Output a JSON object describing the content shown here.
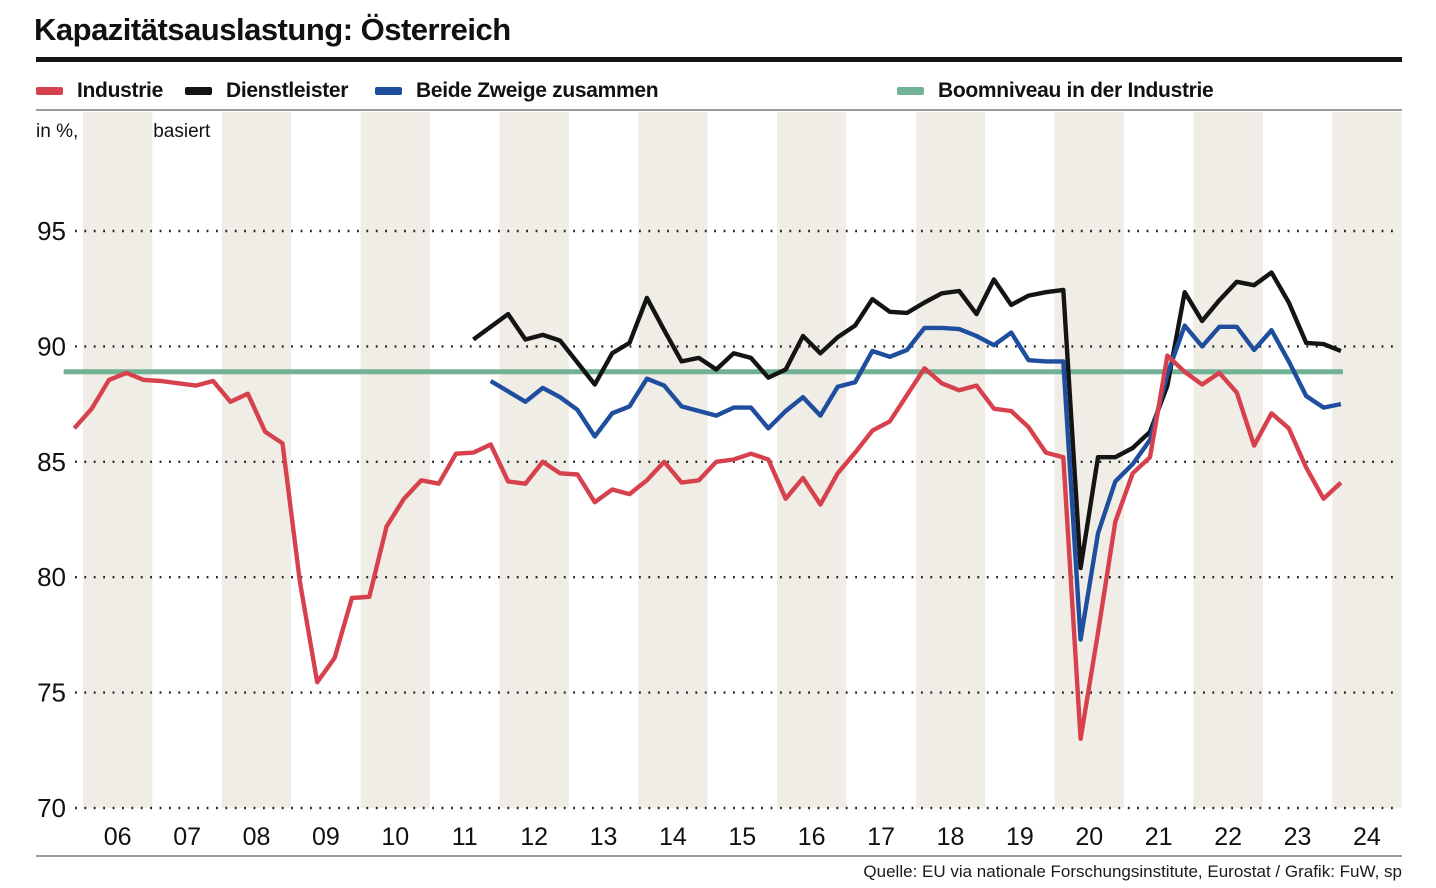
{
  "header": {
    "title": "Kapazitätsauslastung: Österreich"
  },
  "subtitle": "in %, umfragebasiert",
  "legend": [
    {
      "label": "Industrie",
      "color": "#d7414d"
    },
    {
      "label": "Dienstleister",
      "color": "#141414"
    },
    {
      "label": "Beide Zweige zusammen",
      "color": "#1e4e9d"
    },
    {
      "label": "Boomniveau in der Industrie",
      "color": "#72b294"
    }
  ],
  "footer": {
    "source": "Quelle: EU via nationale Forschungsinstitute, Eurostat / Grafik: FuW, sp"
  },
  "chart_data": {
    "type": "line",
    "title": "Kapazitätsauslastung: Österreich",
    "ylabel": "in %, umfragebasiert",
    "ylim": [
      70,
      96.8
    ],
    "yticks": [
      95,
      90,
      85,
      80,
      75,
      70
    ],
    "xticks": [
      "06",
      "07",
      "08",
      "09",
      "10",
      "11",
      "12",
      "13",
      "14",
      "15",
      "16",
      "17",
      "18",
      "19",
      "20",
      "21",
      "22",
      "23",
      "24"
    ],
    "grid": "dotted-horizontal",
    "stripes": "alternating-even-years",
    "legend_position": "top",
    "frequency": "quarterly",
    "boom_level": 88.9,
    "series": [
      {
        "name": "Industrie",
        "color": "#d7414d",
        "start": "2005Q4",
        "values": [
          86.45,
          87.3,
          88.55,
          88.85,
          88.55,
          88.5,
          88.4,
          88.3,
          88.5,
          87.6,
          87.95,
          86.3,
          85.8,
          79.8,
          75.45,
          76.5,
          79.1,
          79.15,
          82.2,
          83.4,
          84.2,
          84.05,
          85.35,
          85.4,
          85.75,
          84.15,
          84.05,
          85.0,
          84.5,
          84.45,
          83.25,
          83.8,
          83.6,
          84.2,
          85.0,
          84.1,
          84.2,
          85.0,
          85.1,
          85.35,
          85.1,
          83.4,
          84.3,
          83.15,
          84.5,
          85.4,
          86.35,
          86.75,
          87.9,
          89.05,
          88.4,
          88.1,
          88.3,
          87.3,
          87.2,
          86.5,
          85.4,
          85.2,
          73.0,
          77.6,
          82.4,
          84.5,
          85.2,
          89.6,
          88.9,
          88.35,
          88.85,
          88.0,
          85.7,
          87.1,
          86.45,
          84.75,
          83.4,
          84.1
        ]
      },
      {
        "name": "Dienstleister",
        "color": "#141414",
        "start": "2011Q3",
        "values": [
          90.3,
          90.85,
          91.4,
          90.3,
          90.5,
          90.25,
          89.3,
          88.35,
          89.7,
          90.15,
          92.1,
          90.7,
          89.35,
          89.5,
          89.0,
          89.7,
          89.5,
          88.65,
          89.0,
          90.45,
          89.7,
          90.4,
          90.9,
          92.05,
          91.5,
          91.45,
          91.9,
          92.3,
          92.4,
          91.4,
          92.9,
          91.8,
          92.2,
          92.35,
          92.45,
          80.4,
          85.2,
          85.2,
          85.6,
          86.3,
          88.3,
          92.35,
          91.1,
          92.0,
          92.8,
          92.65,
          93.2,
          91.9,
          90.15,
          90.1,
          89.8
        ]
      },
      {
        "name": "Beide Zweige zusammen",
        "color": "#1e4e9d",
        "start": "2011Q4",
        "values": [
          88.5,
          88.05,
          87.6,
          88.2,
          87.8,
          87.25,
          86.1,
          87.1,
          87.4,
          88.6,
          88.3,
          87.4,
          87.2,
          87.0,
          87.35,
          87.35,
          86.45,
          87.2,
          87.8,
          87.0,
          88.25,
          88.45,
          89.8,
          89.55,
          89.85,
          90.8,
          90.8,
          90.75,
          90.45,
          90.05,
          90.6,
          89.4,
          89.35,
          89.35,
          77.3,
          81.9,
          84.15,
          84.9,
          85.95,
          88.8,
          90.9,
          90.0,
          90.85,
          90.85,
          89.85,
          90.7,
          89.35,
          87.85,
          87.35,
          87.5
        ]
      },
      {
        "name": "Boomniveau in der Industrie",
        "color": "#72b294",
        "start": "2005Q4",
        "constant": 88.9,
        "end": "2024Q1"
      }
    ]
  }
}
